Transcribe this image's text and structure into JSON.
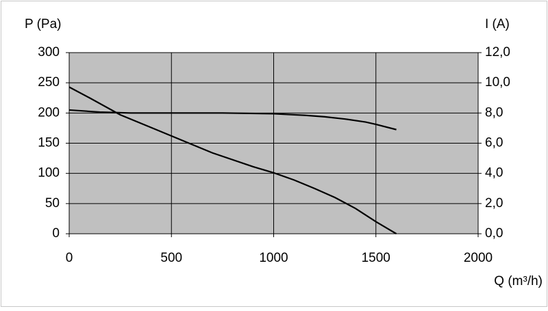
{
  "chart_data": {
    "type": "line",
    "y_label": "P (Pa)",
    "y2_label": "I (A)",
    "x_label": "Q (m³/h)",
    "xlim": [
      0,
      2000
    ],
    "xticks": [
      0,
      500,
      1000,
      1500,
      2000
    ],
    "ylim": [
      0,
      300
    ],
    "yticks": [
      0,
      50,
      100,
      150,
      200,
      250,
      300
    ],
    "y2lim": [
      0,
      12
    ],
    "y2ticks": [
      {
        "value": 0,
        "label": "0,0"
      },
      {
        "value": 2,
        "label": "2,0"
      },
      {
        "value": 4,
        "label": "4,0"
      },
      {
        "value": 6,
        "label": "6,0"
      },
      {
        "value": 8,
        "label": "8,0"
      },
      {
        "value": 10,
        "label": "10,0"
      },
      {
        "value": 12,
        "label": "12,0"
      }
    ],
    "grid": true,
    "background": "#c0c0c0",
    "series": [
      {
        "color": "#000000",
        "x": [
          0,
          100,
          250,
          400,
          500,
          700,
          900,
          1000,
          1100,
          1200,
          1300,
          1400,
          1500,
          1560,
          1600
        ],
        "values": [
          243,
          225,
          197,
          176,
          162,
          134,
          111,
          101,
          89,
          75,
          60,
          42,
          20,
          8,
          0
        ]
      },
      {
        "color": "#000000",
        "axis": "y2",
        "x": [
          0,
          150,
          300,
          500,
          750,
          1000,
          1150,
          1250,
          1350,
          1450,
          1500,
          1600
        ],
        "values": [
          8.2,
          8.06,
          8.0,
          8.0,
          8.0,
          7.95,
          7.85,
          7.75,
          7.6,
          7.4,
          7.25,
          6.9
        ]
      }
    ]
  }
}
